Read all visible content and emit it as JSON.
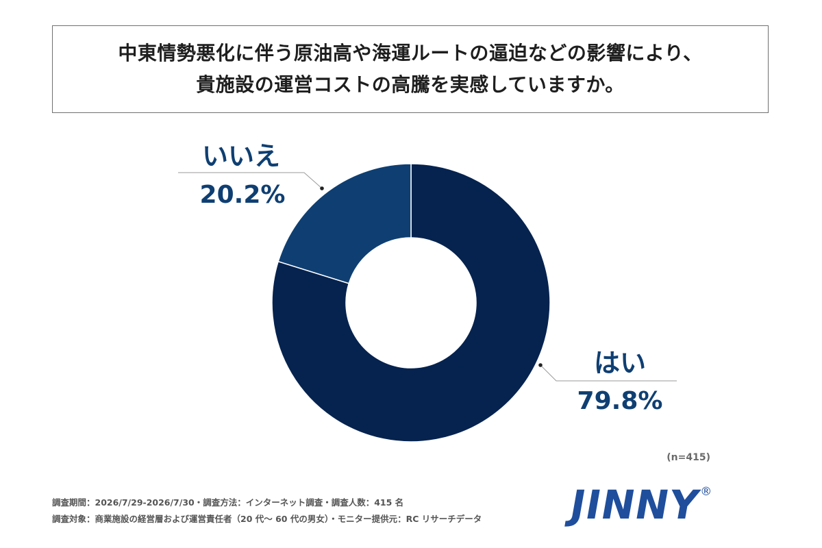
{
  "title": {
    "line1": "中東情勢悪化に伴う原油高や海運ルートの逼迫などの影響により、",
    "line2": "貴施設の運営コストの高騰を実感していますか。"
  },
  "chart_data": {
    "type": "pie",
    "donut": true,
    "categories": [
      "はい",
      "いいえ"
    ],
    "values": [
      79.8,
      20.2
    ],
    "value_labels": [
      "79.8%",
      "20.2%"
    ],
    "unit": "%",
    "colors": [
      "#06234f",
      "#0f3f72"
    ],
    "label_color": "#0f3f72",
    "start": "12 o'clock",
    "direction": "clockwise"
  },
  "sample_size": "(n=415)",
  "footnotes": {
    "line1": "調査期間：2026/7/29-2026/7/30・調査方法：インターネット調査・調査人数：415 名",
    "line2": "調査対象：商業施設の経営層および運営責任者（20 代～ 60 代の男女）・モニター提供元：RC リサーチデータ"
  },
  "logo": {
    "text": "JINNY",
    "mark": "®",
    "color": "#1f4e9c"
  }
}
